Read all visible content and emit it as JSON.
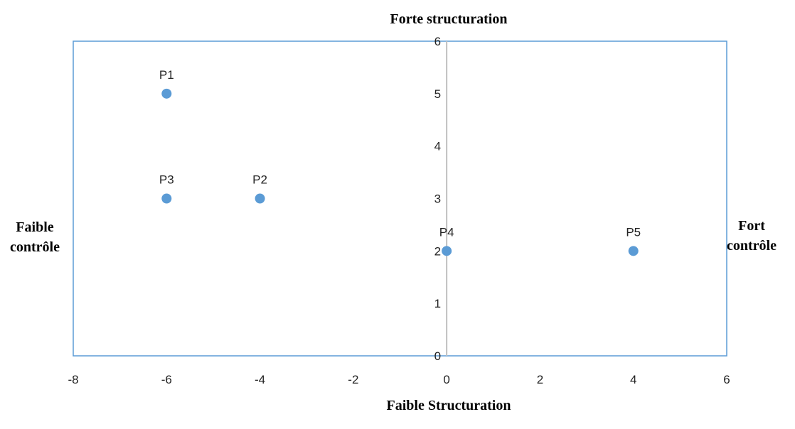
{
  "labels": {
    "top": "Forte structuration",
    "bottom": "Faible Structuration",
    "left_line1": "Faible",
    "left_line2": "contrôle",
    "right_line1": "Fort",
    "right_line2": "contrôle"
  },
  "colors": {
    "frame": "#5b9bd5",
    "axis": "#bfbfbf",
    "point": "#5b9bd5"
  },
  "chart_data": {
    "type": "scatter",
    "xlim": [
      -8,
      6
    ],
    "ylim": [
      0,
      6
    ],
    "x_ticks": [
      -8,
      -6,
      -4,
      -2,
      0,
      2,
      4,
      6
    ],
    "y_ticks": [
      0,
      1,
      2,
      3,
      4,
      5,
      6
    ],
    "grid": false,
    "points": [
      {
        "label": "P1",
        "x": -6,
        "y": 5
      },
      {
        "label": "P2",
        "x": -4,
        "y": 3
      },
      {
        "label": "P3",
        "x": -6,
        "y": 3
      },
      {
        "label": "P4",
        "x": 0,
        "y": 2
      },
      {
        "label": "P5",
        "x": 4,
        "y": 2
      }
    ]
  }
}
